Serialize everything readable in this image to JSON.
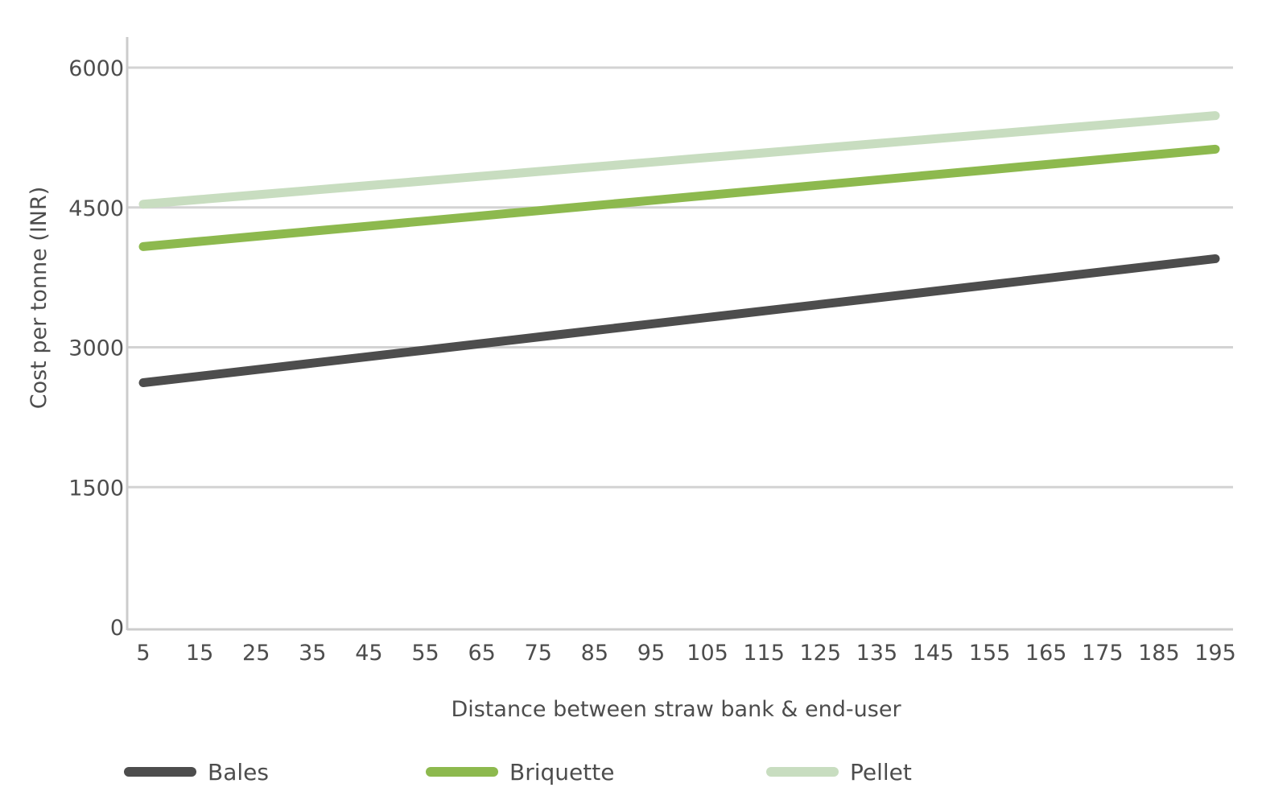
{
  "chart_data": {
    "type": "line",
    "title": "",
    "xlabel": "Distance between straw bank & end-user",
    "ylabel": "Cost per tonne (INR)",
    "x": [
      5,
      15,
      25,
      35,
      45,
      55,
      65,
      75,
      85,
      95,
      105,
      115,
      125,
      135,
      145,
      155,
      165,
      175,
      185,
      195
    ],
    "x_tick_labels": [
      "5",
      "15",
      "25",
      "35",
      "45",
      "55",
      "65",
      "75",
      "85",
      "95",
      "105",
      "115",
      "125",
      "135",
      "145",
      "155",
      "165",
      "175",
      "185",
      "195"
    ],
    "ylim": [
      0,
      6000
    ],
    "y_ticks": [
      0,
      1500,
      3000,
      4500,
      6000
    ],
    "y_tick_labels": [
      "0",
      "1500",
      "3000",
      "4500",
      "6000"
    ],
    "grid": true,
    "legend_position": "bottom",
    "series": [
      {
        "name": "Bales",
        "color": "#4d4d4d",
        "values": [
          2620,
          2690,
          2760,
          2830,
          2900,
          2970,
          3040,
          3110,
          3180,
          3250,
          3320,
          3390,
          3460,
          3530,
          3600,
          3670,
          3740,
          3810,
          3880,
          3950
        ]
      },
      {
        "name": "Briquette",
        "color": "#8db94e",
        "values": [
          4080,
          4135,
          4190,
          4245,
          4300,
          4355,
          4410,
          4465,
          4520,
          4575,
          4630,
          4685,
          4740,
          4795,
          4850,
          4905,
          4960,
          5015,
          5070,
          5125
        ]
      },
      {
        "name": "Pellet",
        "color": "#c8ddc0",
        "values": [
          4535,
          4585,
          4635,
          4685,
          4735,
          4785,
          4835,
          4885,
          4935,
          4985,
          5035,
          5085,
          5135,
          5185,
          5235,
          5285,
          5335,
          5385,
          5435,
          5485
        ]
      }
    ]
  }
}
